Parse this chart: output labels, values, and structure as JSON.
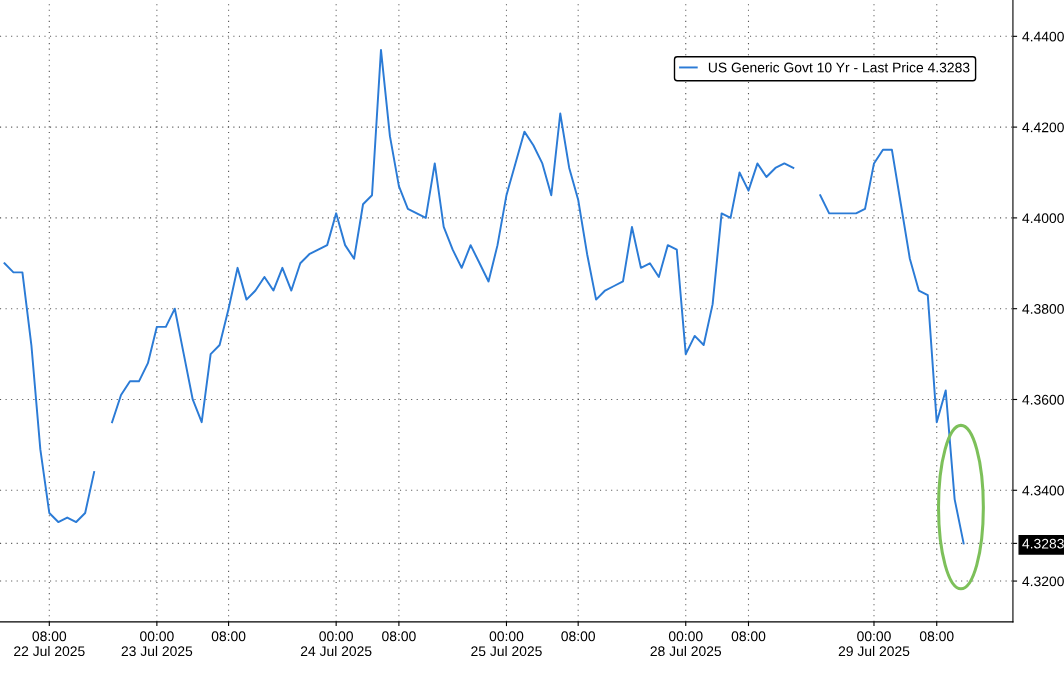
{
  "chart_data": {
    "type": "line",
    "categories": [
      null,
      null,
      null,
      null,
      null,
      "08:00\n22 Jul 2025",
      null,
      null,
      null,
      null,
      null,
      null,
      null,
      null,
      null,
      null,
      null,
      "00:00\n23 Jul 2025",
      null,
      null,
      null,
      null,
      null,
      null,
      null,
      "08:00",
      null,
      null,
      null,
      null,
      null,
      null,
      null,
      null,
      null,
      null,
      null,
      "00:00\n24 Jul 2025",
      null,
      null,
      null,
      null,
      null,
      null,
      "08:00",
      null,
      null,
      null,
      null,
      null,
      null,
      null,
      null,
      null,
      null,
      null,
      "00:00\n25 Jul 2025",
      null,
      null,
      null,
      null,
      null,
      null,
      null,
      "08:00",
      null,
      null,
      null,
      null,
      null,
      null,
      null,
      null,
      null,
      null,
      null,
      "00:00\n28 Jul 2025",
      null,
      null,
      null,
      null,
      null,
      null,
      "08:00",
      null,
      null,
      null,
      null,
      null,
      null,
      null,
      null,
      null,
      null,
      null,
      null,
      null,
      "00:00\n29 Jul 2025",
      null,
      null,
      null,
      null,
      null,
      null,
      "08:00",
      null,
      null,
      null,
      null,
      null,
      null,
      null,
      null
    ],
    "series": [
      {
        "name": "US Generic Govt 10 Yr - Last Price 4.3283",
        "color": "#2b7bd6",
        "values": [
          4.39,
          4.388,
          4.388,
          4.372,
          4.349,
          4.335,
          4.333,
          4.334,
          4.333,
          4.335,
          4.344,
          null,
          4.355,
          4.361,
          4.364,
          4.364,
          4.368,
          4.376,
          4.376,
          4.38,
          4.37,
          4.36,
          4.355,
          4.37,
          4.372,
          4.38,
          4.389,
          4.382,
          4.384,
          4.387,
          4.384,
          4.389,
          4.384,
          4.39,
          4.392,
          4.393,
          4.394,
          4.401,
          4.394,
          4.391,
          4.403,
          4.405,
          4.437,
          4.418,
          4.407,
          4.402,
          4.401,
          4.4,
          4.412,
          4.398,
          4.393,
          4.389,
          4.394,
          4.39,
          4.386,
          4.394,
          4.405,
          4.412,
          4.419,
          4.416,
          4.412,
          4.405,
          4.423,
          4.411,
          4.404,
          4.392,
          4.382,
          4.384,
          4.385,
          4.386,
          4.398,
          4.389,
          4.39,
          4.387,
          4.394,
          4.393,
          4.37,
          4.374,
          4.372,
          4.381,
          4.401,
          4.4,
          4.41,
          4.406,
          4.412,
          4.409,
          4.411,
          4.412,
          4.411,
          null,
          null,
          4.405,
          4.401,
          4.401,
          4.401,
          4.401,
          4.402,
          4.412,
          4.415,
          4.415,
          4.403,
          4.391,
          4.384,
          4.383,
          4.355,
          4.362,
          4.338,
          4.3283,
          null,
          null,
          null,
          null,
          null
        ]
      }
    ],
    "ylim": [
      4.311,
      4.448
    ],
    "yticks": [
      {
        "value": 4.32,
        "label": "4.3200"
      },
      {
        "value": 4.3283,
        "label": "4.3283"
      },
      {
        "value": 4.34,
        "label": "4.3400"
      },
      {
        "value": 4.36,
        "label": "4.3600"
      },
      {
        "value": 4.38,
        "label": "4.3800"
      },
      {
        "value": 4.4,
        "label": "4.4000"
      },
      {
        "value": 4.42,
        "label": "4.4200"
      },
      {
        "value": 4.44,
        "label": "4.4400"
      }
    ],
    "grid": true,
    "legend": "top right",
    "line_style": "solid",
    "marker": "none"
  }
}
